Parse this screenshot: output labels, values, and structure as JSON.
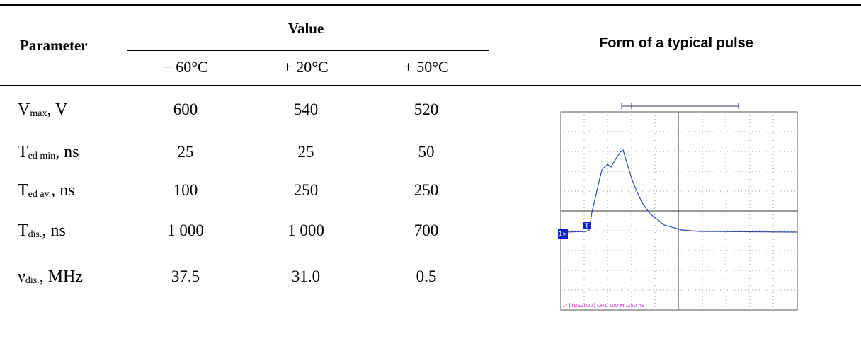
{
  "table": {
    "header": {
      "parameter": "Parameter",
      "value": "Value",
      "temperatures": [
        "− 60°C",
        "+ 20°C",
        "+ 50°C"
      ],
      "pulse": "Form of a typical pulse"
    },
    "rows": [
      {
        "symbol": "V",
        "subscript": "max",
        "unit": ", V",
        "values": [
          "600",
          "540",
          "520"
        ]
      },
      {
        "symbol": "T",
        "subscript": "ed min",
        "unit": ", ns",
        "values": [
          "25",
          "25",
          "50"
        ]
      },
      {
        "symbol": "T",
        "subscript": "ed av.",
        "unit": ", ns",
        "values": [
          "100",
          "250",
          "250"
        ]
      },
      {
        "symbol": "T",
        "subscript": "dis.",
        "unit": ", ns",
        "values": [
          "1 000",
          "1 000",
          "700"
        ]
      },
      {
        "symbol": "ν",
        "subscript": "dis.",
        "unit": ", MHz",
        "values": [
          "37.5",
          "31.0",
          "0.5"
        ]
      }
    ]
  },
  "scope": {
    "trigger": "T",
    "channel": "1>",
    "caption": "1) [TDS2022] CH1 100 M .250 nS"
  }
}
